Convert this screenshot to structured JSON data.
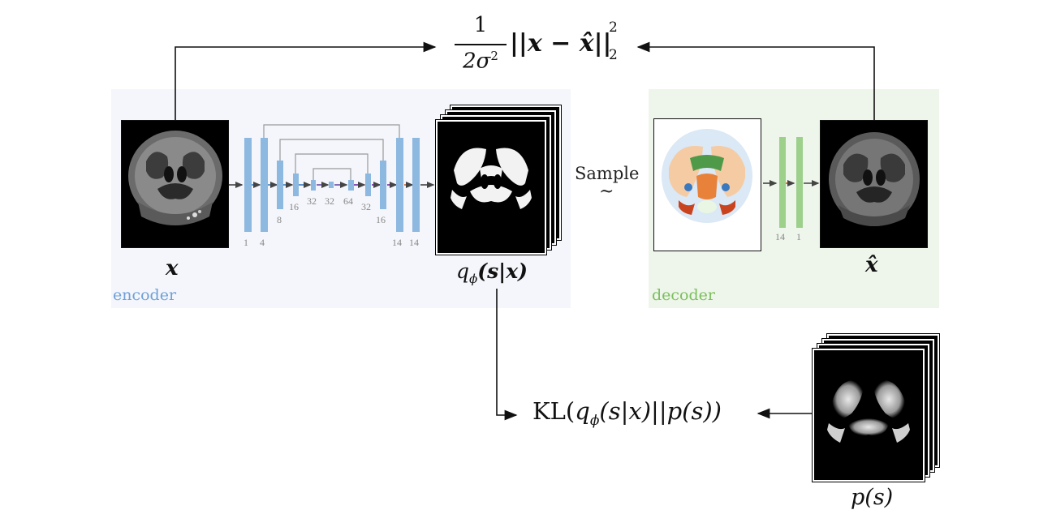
{
  "labels": {
    "encoder": "encoder",
    "decoder": "decoder",
    "sample": "Sample",
    "sample_tilde": "~"
  },
  "math": {
    "x": "x",
    "x_hat": "x̂",
    "q_phi_num": "q",
    "q_phi_sub": "ϕ",
    "q_phi_args": "(s|x)",
    "p_s": "p(s)",
    "recon_num": "1",
    "recon_den": "2σ",
    "recon_den_exp": "2",
    "recon_body": "||x − x̂||",
    "recon_sup": "2",
    "recon_sub": "2",
    "kl_prefix": "KL(",
    "kl_q": "q",
    "kl_sub": "ϕ",
    "kl_rest": "(s|x)||p(s))"
  },
  "encoder_channels": {
    "c1": "1",
    "c4": "4",
    "c8": "8",
    "c16a": "16",
    "c32a": "32",
    "c32b": "32",
    "c64": "64",
    "c32c": "32",
    "c16b": "16",
    "c14a": "14",
    "c14b": "14"
  },
  "decoder_channels": {
    "c14": "14",
    "c1": "1"
  },
  "colors": {
    "encoder_bg": "#f4f6fb",
    "decoder_bg": "#eef5ea",
    "encoder_label": "#6fa0d8",
    "decoder_label": "#7cbf5e",
    "enc_bar": "#8db8e0",
    "dec_bar": "#9cd08b"
  }
}
